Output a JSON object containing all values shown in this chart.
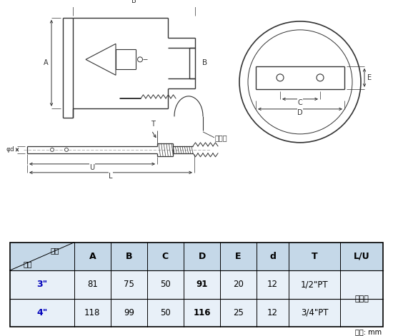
{
  "bg_color": "#ffffff",
  "table_header_bg": "#c5d8e8",
  "lc": "#333333",
  "rows": [
    [
      "3\"",
      "81",
      "75",
      "50",
      "91",
      "20",
      "12",
      "1/2\"PT",
      "依指定"
    ],
    [
      "4\"",
      "118",
      "99",
      "50",
      "116",
      "25",
      "12",
      "3/4\"PT",
      ""
    ]
  ],
  "row_colors": [
    "#0000bb",
    "#0000bb"
  ],
  "unit_text": "單位: mm",
  "header_text_1": "尺寸",
  "header_text_2": "錢徑"
}
